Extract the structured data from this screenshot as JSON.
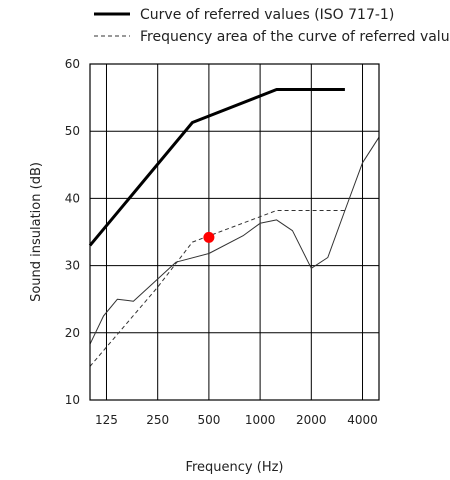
{
  "chart_data": {
    "type": "line",
    "xlabel": "Frequency (Hz)",
    "ylabel": "Sound insulation (dB)",
    "ylim": [
      10,
      60
    ],
    "y_ticks": [
      10,
      20,
      30,
      40,
      50,
      60
    ],
    "x_scale": "log",
    "xlim": [
      100,
      5000
    ],
    "x_tick_labels": [
      "125",
      "250",
      "500",
      "1000",
      "2000",
      "4000"
    ],
    "x_tick_values": [
      125,
      250,
      500,
      1000,
      2000,
      4000
    ],
    "grid": true,
    "legend_position": "top",
    "series": [
      {
        "name": "Curve of referred values (ISO 717-1)",
        "style": "thick-solid",
        "color": "#000000",
        "x": [
          100,
          400,
          1250,
          3150
        ],
        "y": [
          33,
          51.3,
          56.2,
          56.2
        ]
      },
      {
        "name": "Frequency area of the curve of referred values",
        "style": "dashed",
        "color": "#333333",
        "x": [
          100,
          250,
          400,
          1250,
          3150
        ],
        "y": [
          15,
          26.8,
          33.5,
          38.2,
          38.2
        ]
      },
      {
        "style": "thin-solid",
        "color": "#333333",
        "x": [
          100,
          120,
          145,
          180,
          250,
          320,
          500,
          800,
          1000,
          1250,
          1550,
          2000,
          2500,
          3150,
          4000,
          5000
        ],
        "y": [
          18.3,
          22.5,
          25,
          24.7,
          28,
          30.5,
          31.8,
          34.5,
          36.3,
          36.8,
          35.2,
          29.6,
          31.2,
          38.2,
          45.3,
          49.1
        ]
      }
    ],
    "highlight_point": {
      "x": 500,
      "y": 34.2,
      "color": "#ff0000"
    }
  }
}
